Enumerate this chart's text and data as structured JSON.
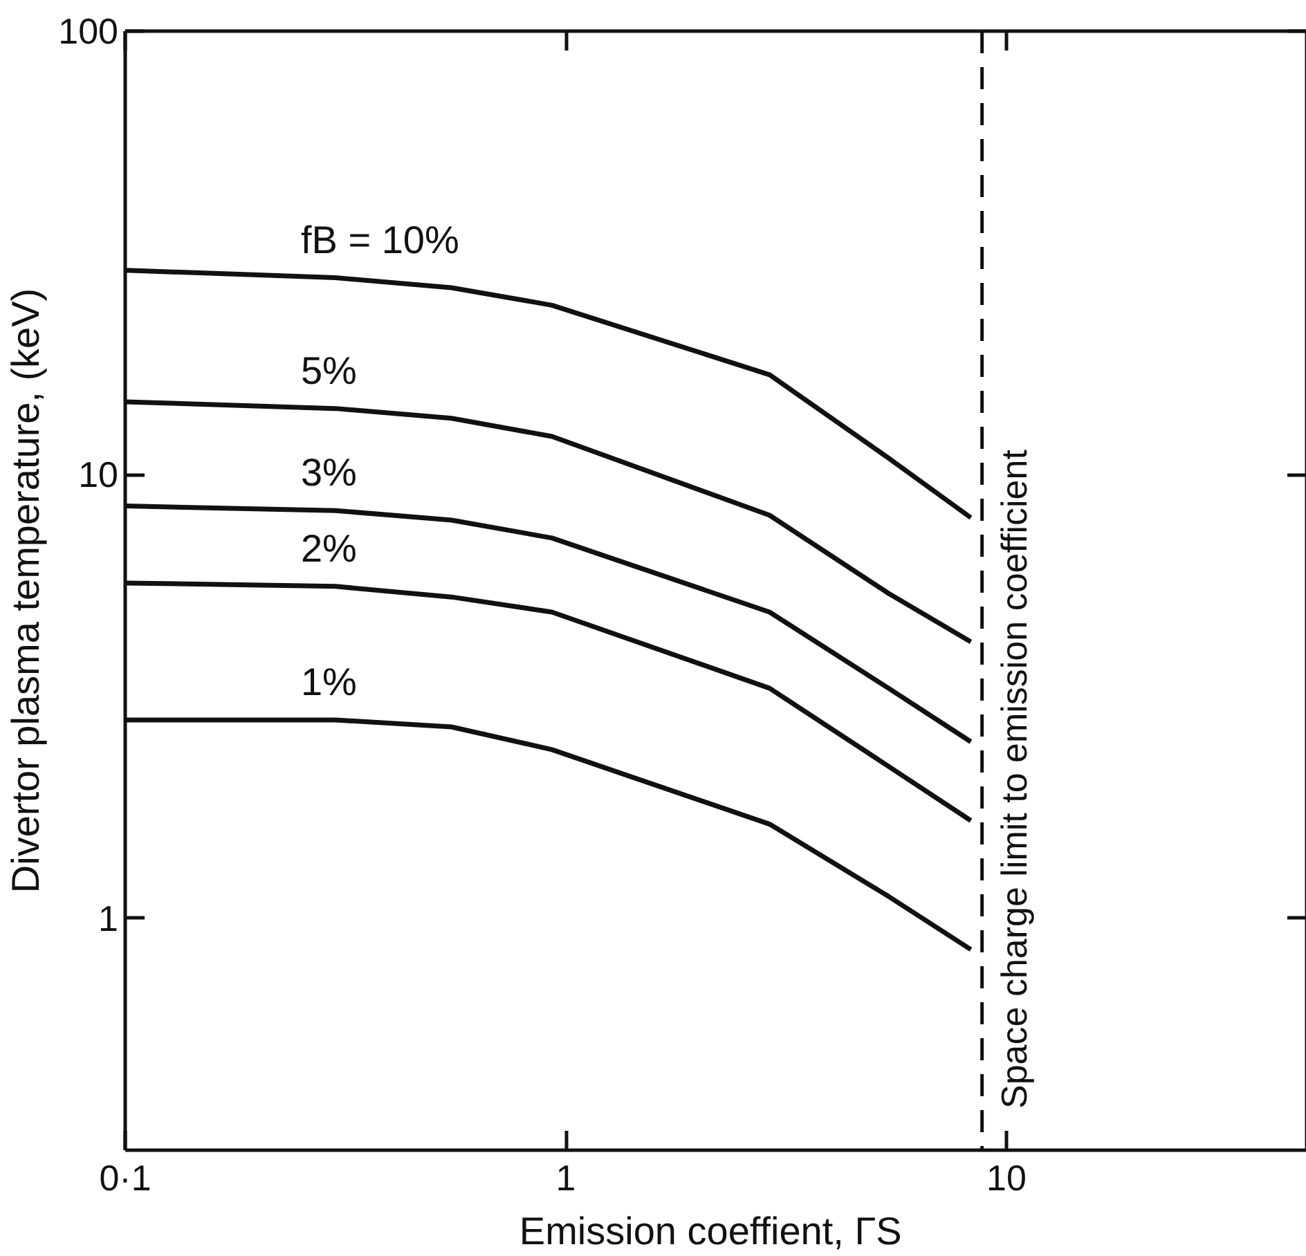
{
  "chart_data": {
    "type": "line",
    "xlabel": "Emission  coeffient, ΓS",
    "ylabel": "Divertor plasma temperature, (keV)",
    "log": "xy",
    "xlim": [
      0.1,
      48
    ],
    "ylim": [
      0.3,
      100
    ],
    "xticks": [
      {
        "value": 0.1,
        "label": "0·1"
      },
      1,
      10
    ],
    "yticks": [
      1,
      10,
      100
    ],
    "grid": false,
    "line_style": "solid",
    "series": [
      {
        "name": "fB = 10%",
        "color": "#111111",
        "x": [
          0.1,
          0.3,
          0.55,
          0.93,
          2.9,
          5.4,
          8.3
        ],
        "values": [
          28.9,
          27.8,
          26.4,
          24.1,
          16.8,
          10.9,
          8.0
        ]
      },
      {
        "name": "5%",
        "color": "#111111",
        "x": [
          0.1,
          0.3,
          0.55,
          0.93,
          2.9,
          5.4,
          8.3
        ],
        "values": [
          14.6,
          14.1,
          13.4,
          12.2,
          8.1,
          5.4,
          4.2
        ]
      },
      {
        "name": "3%",
        "color": "#111111",
        "x": [
          0.1,
          0.3,
          0.55,
          0.93,
          2.9,
          5.4,
          8.3
        ],
        "values": [
          8.5,
          8.3,
          7.9,
          7.2,
          4.9,
          3.3,
          2.5
        ]
      },
      {
        "name": "2%",
        "color": "#111111",
        "x": [
          0.1,
          0.3,
          0.55,
          0.93,
          2.9,
          5.4,
          8.3
        ],
        "values": [
          5.7,
          5.6,
          5.3,
          4.9,
          3.3,
          2.2,
          1.66
        ]
      },
      {
        "name": "1%",
        "color": "#111111",
        "x": [
          0.1,
          0.3,
          0.55,
          0.93,
          2.9,
          5.4,
          8.3
        ],
        "values": [
          2.8,
          2.8,
          2.7,
          2.4,
          1.63,
          1.12,
          0.85
        ]
      }
    ],
    "ref_lines": [
      {
        "axis": "x",
        "value": 8.8,
        "label": "Space charge limit to emission coefficient",
        "line_style": "dashed",
        "color": "#111111"
      }
    ]
  }
}
